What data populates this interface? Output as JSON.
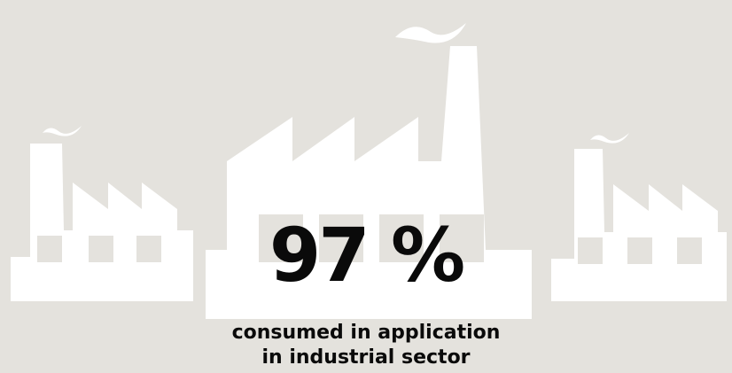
{
  "stat": {
    "value": "97 %",
    "caption_line1": "consumed in application",
    "caption_line2": "in industrial sector"
  },
  "illustration": {
    "icons": [
      "factory-icon-left",
      "factory-icon-center",
      "factory-icon-right",
      "smoke-icon"
    ],
    "colors": {
      "background": "#e4e2dd",
      "factory": "#ffffff",
      "text": "#0a0a0a"
    }
  }
}
